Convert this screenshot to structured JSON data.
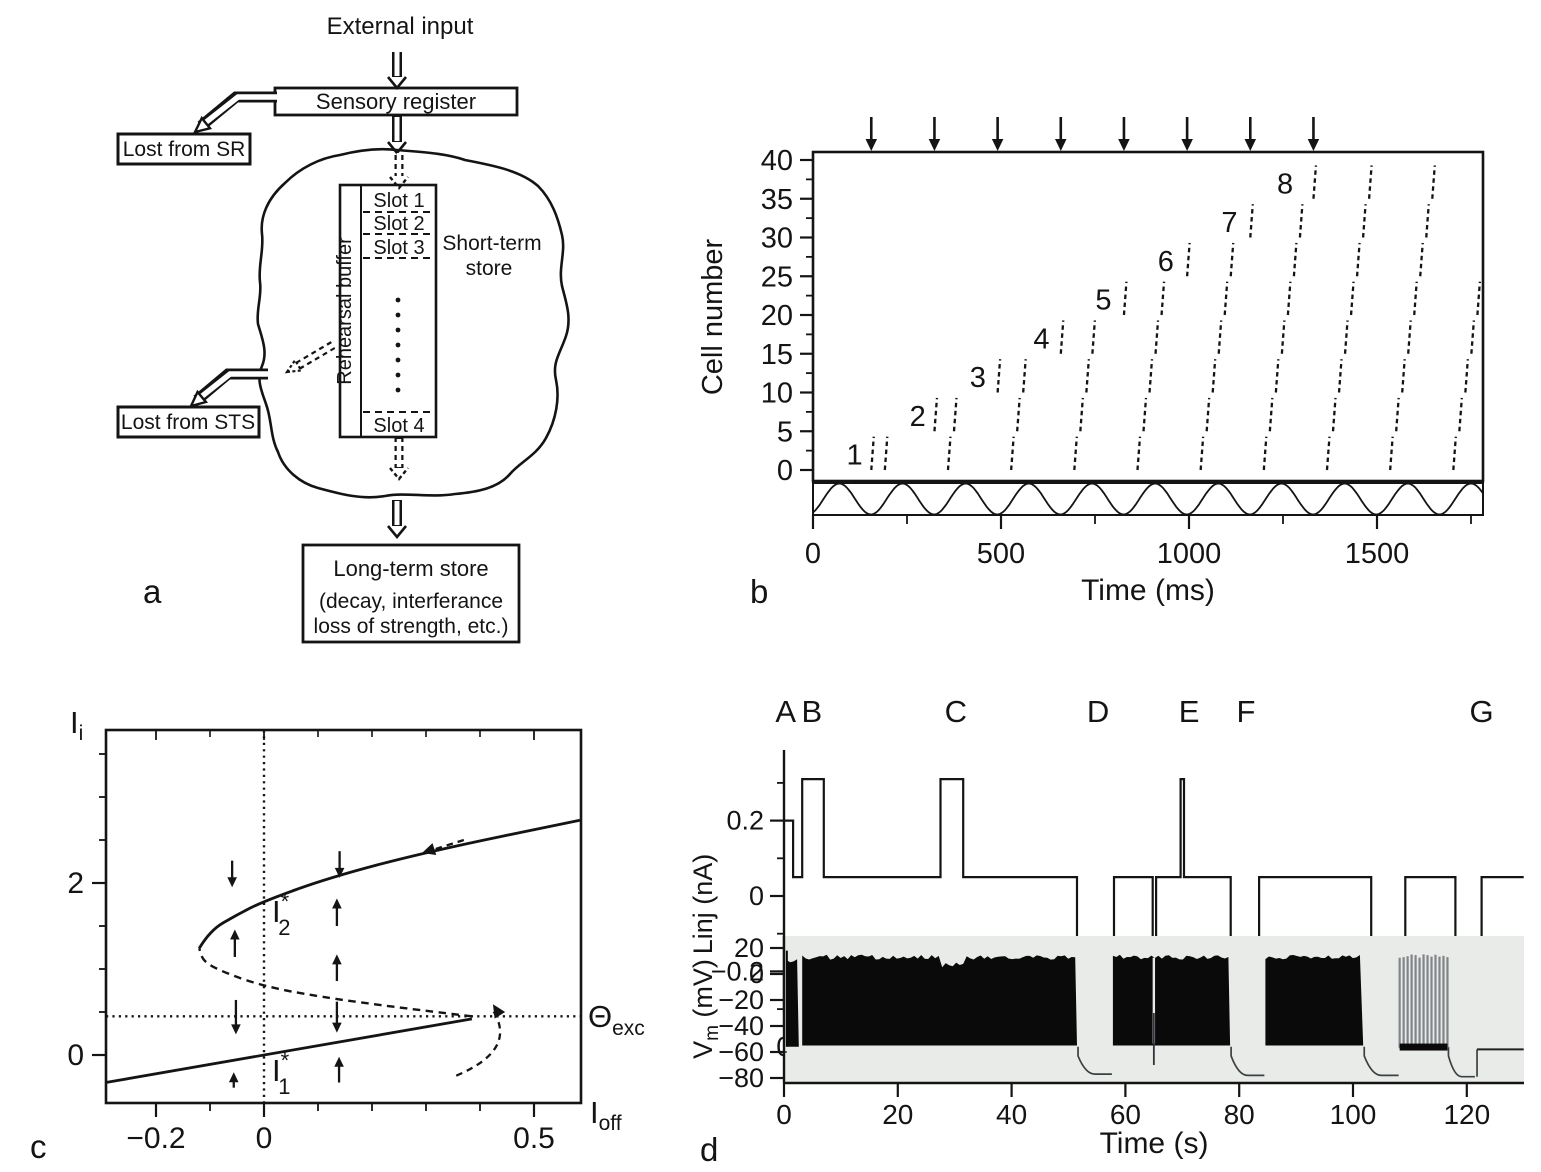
{
  "panels": {
    "a_label": "a",
    "b_label": "b",
    "c_label": "c",
    "d_label": "d"
  },
  "panel_a": {
    "external_input": "External input",
    "sensory_register": "Sensory register",
    "lost_from_sr": "Lost from SR",
    "rehearsal_buffer": "Rehearsal buffer",
    "slot_labels": [
      "Slot 1",
      "Slot 2",
      "Slot 3",
      "Slot 4"
    ],
    "short_term_store": [
      "Short-term",
      "store"
    ],
    "lost_from_sts": "Lost from STS",
    "long_term_store": "Long-term store",
    "long_term_note_line1": "(decay, interferance",
    "long_term_note_line2": "loss of strength, etc.)"
  },
  "chart_data": [
    {
      "id": "b",
      "type": "scatter",
      "subtype": "spike-raster",
      "xlabel": "Time (ms)",
      "ylabel": "Cell number",
      "xlim": [
        0,
        1782
      ],
      "ylim": [
        0,
        40
      ],
      "x_major_ticks": [
        0,
        500,
        1000,
        1500
      ],
      "x_tick_labels": [
        "0",
        "500",
        "1000",
        "1500"
      ],
      "x_minor_ticks": [
        250,
        750,
        1250,
        1750
      ],
      "y_major_ticks": [
        0,
        5,
        10,
        15,
        20,
        25,
        30,
        35,
        40
      ],
      "y_tick_labels": [
        "0",
        "5",
        "10",
        "15",
        "20",
        "25",
        "30",
        "35",
        "40"
      ],
      "y_minor_step": 2.5,
      "stimulus_arrow_times_ms": [
        155,
        323,
        491,
        659,
        827,
        995,
        1163,
        1331
      ],
      "theta_period_ms": 168,
      "theta_wave_peak_ms": 70,
      "burst_span_cells": 4.3,
      "cycles": [
        {
          "segments": [
            [
              155,
              0
            ]
          ]
        },
        {
          "segments": [
            [
              191,
              0
            ],
            [
              323,
              5
            ]
          ]
        },
        {
          "segments": [
            [
              359,
              0
            ],
            [
              375,
              5
            ],
            [
              491,
              10
            ]
          ]
        },
        {
          "segments": [
            [
              527,
              0
            ],
            [
              543,
              5
            ],
            [
              559,
              10
            ],
            [
              659,
              15
            ]
          ]
        },
        {
          "segments": [
            [
              695,
              0
            ],
            [
              711,
              5
            ],
            [
              727,
              10
            ],
            [
              743,
              15
            ],
            [
              827,
              20
            ]
          ]
        },
        {
          "segments": [
            [
              863,
              0
            ],
            [
              879,
              5
            ],
            [
              895,
              10
            ],
            [
              911,
              15
            ],
            [
              927,
              20
            ],
            [
              995,
              25
            ]
          ]
        },
        {
          "segments": [
            [
              1031,
              0
            ],
            [
              1047,
              5
            ],
            [
              1063,
              10
            ],
            [
              1079,
              15
            ],
            [
              1095,
              20
            ],
            [
              1111,
              25
            ],
            [
              1163,
              30
            ]
          ]
        },
        {
          "segments": [
            [
              1199,
              0
            ],
            [
              1215,
              5
            ],
            [
              1231,
              10
            ],
            [
              1247,
              15
            ],
            [
              1263,
              20
            ],
            [
              1279,
              25
            ],
            [
              1295,
              30
            ],
            [
              1331,
              35
            ]
          ]
        },
        {
          "segments": [
            [
              1367,
              0
            ],
            [
              1383,
              5
            ],
            [
              1399,
              10
            ],
            [
              1415,
              15
            ],
            [
              1431,
              20
            ],
            [
              1447,
              25
            ],
            [
              1463,
              30
            ],
            [
              1479,
              35
            ]
          ]
        },
        {
          "segments": [
            [
              1535,
              0
            ],
            [
              1551,
              5
            ],
            [
              1567,
              10
            ],
            [
              1583,
              15
            ],
            [
              1599,
              20
            ],
            [
              1615,
              25
            ],
            [
              1631,
              30
            ],
            [
              1647,
              35
            ]
          ]
        },
        {
          "segments": [
            [
              1703,
              0
            ],
            [
              1719,
              5
            ],
            [
              1735,
              10
            ],
            [
              1751,
              15
            ],
            [
              1767,
              20
            ],
            [
              1783,
              25
            ]
          ]
        }
      ],
      "item_labels": [
        {
          "text": "1",
          "t": 100,
          "cell": 2
        },
        {
          "text": "2",
          "t": 268,
          "cell": 7
        },
        {
          "text": "3",
          "t": 428,
          "cell": 12
        },
        {
          "text": "4",
          "t": 597,
          "cell": 17
        },
        {
          "text": "5",
          "t": 762,
          "cell": 22
        },
        {
          "text": "6",
          "t": 928,
          "cell": 27
        },
        {
          "text": "7",
          "t": 1097,
          "cell": 32
        },
        {
          "text": "8",
          "t": 1245,
          "cell": 37
        }
      ]
    },
    {
      "id": "c",
      "type": "line",
      "subtype": "bifurcation-diagram",
      "xlabel_main": "I",
      "xlabel_sub": "off",
      "ylabel_main": "I",
      "ylabel_sub": "i",
      "xlim": [
        -0.293,
        0.587
      ],
      "ylim": [
        -0.56,
        3.78
      ],
      "x_major_ticks": [
        -0.2,
        0,
        0.5
      ],
      "x_tick_labels": [
        "−0.2",
        "0",
        "0.5"
      ],
      "x_minor_ticks": [
        -0.1,
        0.1,
        0.2,
        0.3,
        0.4
      ],
      "y_major_ticks": [
        0,
        2
      ],
      "y_tick_labels": [
        "0",
        "2"
      ],
      "y_minor_ticks": [
        0.5,
        1,
        1.5,
        2.5,
        3,
        3.5
      ],
      "theta_exc": 0.45,
      "theta_label_main": "Θ",
      "theta_label_sub": "exc",
      "dotted_vline_x": 0,
      "fixed_point_upper": {
        "main": "I",
        "sup": "*",
        "sub": "2"
      },
      "fixed_point_lower": {
        "main": "I",
        "sup": "*",
        "sub": "1"
      },
      "lower_branch": [
        [
          -0.293,
          -0.32
        ],
        [
          0.385,
          0.42
        ]
      ],
      "middle_branch_dashed": [
        [
          0.385,
          0.45
        ],
        [
          0.25,
          0.55
        ],
        [
          0.1,
          0.68
        ],
        [
          0,
          0.8
        ],
        [
          -0.07,
          0.95
        ],
        [
          -0.112,
          1.08
        ],
        [
          -0.12,
          1.24
        ]
      ],
      "upper_branch": [
        [
          -0.12,
          1.24
        ],
        [
          -0.1,
          1.45
        ],
        [
          -0.05,
          1.63
        ],
        [
          0,
          1.79
        ],
        [
          0.12,
          2.06
        ],
        [
          0.3,
          2.36
        ],
        [
          0.585,
          2.73
        ]
      ],
      "flow_arrows": [
        {
          "u": -0.059,
          "v_from": 2.26,
          "v_to": 1.95
        },
        {
          "u": 0.14,
          "v_from": 2.37,
          "v_to": 2.06
        },
        {
          "u": -0.054,
          "v_from": 1.14,
          "v_to": 1.46
        },
        {
          "u": 0.135,
          "v_from": 1.5,
          "v_to": 1.82
        },
        {
          "u": 0.135,
          "v_from": 0.86,
          "v_to": 1.17
        },
        {
          "u": -0.052,
          "v_from": 0.64,
          "v_to": 0.24
        },
        {
          "u": 0.135,
          "v_from": 0.62,
          "v_to": 0.26
        },
        {
          "u": -0.056,
          "v_from": -0.38,
          "v_to": -0.2
        },
        {
          "u": 0.139,
          "v_from": -0.32,
          "v_to": -0.02
        }
      ],
      "jump_arrow": {
        "from": [
          0.356,
          -0.24
        ],
        "ctrl": [
          0.47,
          0.06
        ],
        "to": [
          0.424,
          0.52
        ]
      },
      "drift_arrow": {
        "from": [
          0.37,
          2.5
        ],
        "to": [
          0.3,
          2.36
        ]
      }
    },
    {
      "id": "d-injected-current",
      "type": "line",
      "subtype": "step-trace",
      "ylabel": "Linj (nA)",
      "xlim": [
        0,
        130
      ],
      "x_major_ticks": [
        0,
        20,
        40,
        60,
        80,
        100,
        120
      ],
      "x_tick_labels": [
        "0",
        "20",
        "40",
        "60",
        "80",
        "100",
        "120"
      ],
      "y_major_ticks": [
        0.2,
        0,
        -0.2
      ],
      "y_tick_labels": [
        "0.2",
        "0",
        "−0.2"
      ],
      "y_minor_ticks": [
        0.3,
        0.1,
        -0.1,
        -0.3
      ],
      "baseline_nA": 0.05,
      "breakpoints": [
        [
          0,
          0.2
        ],
        [
          1.6,
          0.05
        ],
        [
          3.2,
          0.31
        ],
        [
          7,
          0.05
        ],
        [
          27.5,
          0.31
        ],
        [
          31.5,
          0.05
        ],
        [
          51.5,
          -0.2
        ],
        [
          58,
          0.05
        ],
        [
          64.8,
          -0.2
        ],
        [
          65.4,
          0.05
        ],
        [
          69.7,
          0.31
        ],
        [
          70.3,
          0.05
        ],
        [
          78.5,
          -0.2
        ],
        [
          83.5,
          0.05
        ],
        [
          103.2,
          -0.2
        ],
        [
          109.2,
          0.05
        ],
        [
          118,
          -0.2
        ],
        [
          122.6,
          0.05
        ]
      ],
      "end_s": 130,
      "event_letters": [
        {
          "text": "A",
          "t": 0.3
        },
        {
          "text": "B",
          "t": 4.9
        },
        {
          "text": "C",
          "t": 30.2
        },
        {
          "text": "D",
          "t": 55.2
        },
        {
          "text": "E",
          "t": 71.2
        },
        {
          "text": "F",
          "t": 81.2
        },
        {
          "text": "G",
          "t": 122.6
        }
      ]
    },
    {
      "id": "d-membrane-potential",
      "type": "line",
      "subtype": "voltage-trace",
      "ylabel_main": "V",
      "ylabel_sub": "m",
      "ylabel_units": " (mV)",
      "xlabel": "Time (s)",
      "xlim": [
        0,
        130
      ],
      "ylim": [
        -85,
        25
      ],
      "x_major_ticks": [
        0,
        20,
        40,
        60,
        80,
        100,
        120
      ],
      "x_tick_labels": [
        "0",
        "20",
        "40",
        "60",
        "80",
        "100",
        "120"
      ],
      "y_major_ticks": [
        20,
        0,
        -20,
        -40,
        -60,
        -80
      ],
      "y_tick_labels": [
        "20",
        "0",
        "−20",
        "−40",
        "−60",
        "−80"
      ],
      "bg_color": "#e9ebe8",
      "spiking_bands": [
        {
          "t0": 0.45,
          "t1": 2.6,
          "v_top": 9,
          "v_bottom": -56
        },
        {
          "t0": 3.2,
          "t1": 51.5,
          "v_top": 11,
          "v_bottom": -55,
          "dip_t0": 27.5,
          "dip_t1": 31.5,
          "dip_top": 5
        },
        {
          "t0": 57.8,
          "t1": 78.4,
          "v_top": 11,
          "v_bottom": -55,
          "notch_t": 65
        },
        {
          "t0": 84.6,
          "t1": 101.8,
          "v_top": 11,
          "v_bottom": -55
        }
      ],
      "tonic_spike_band": {
        "t0": 108.2,
        "t1": 116.6,
        "v_top": 12,
        "v_bottom": -57,
        "n_spikes": 13
      },
      "hyperpolarizations": [
        {
          "t0": 51.5,
          "t1": 57.8,
          "v_end": -77
        },
        {
          "t0": 78.4,
          "t1": 84.6,
          "v_end": -78
        },
        {
          "t0": 101.8,
          "t1": 108.2,
          "v_end": -78
        },
        {
          "t0": 116.6,
          "t1": 121.6,
          "v_end": -79
        }
      ],
      "rest_segment": {
        "t0": 121.8,
        "t1": 130,
        "v": -58
      },
      "onset_spike": {
        "t": 0.5,
        "v_peak": 18
      }
    }
  ]
}
